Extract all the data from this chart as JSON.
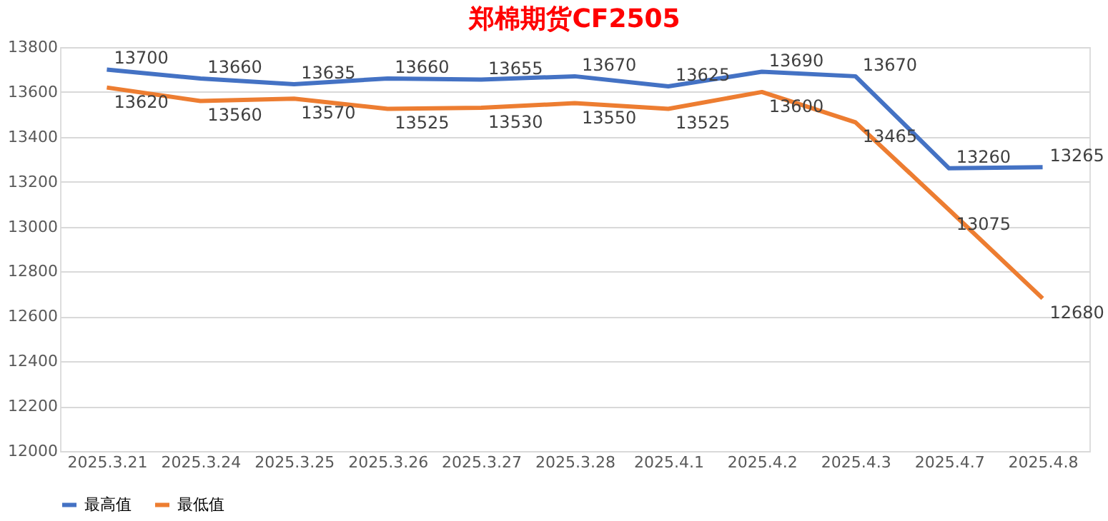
{
  "chart_data": {
    "type": "line",
    "title": "郑棉期货CF2505",
    "categories": [
      "2025.3.21",
      "2025.3.24",
      "2025.3.25",
      "2025.3.26",
      "2025.3.27",
      "2025.3.28",
      "2025.4.1",
      "2025.4.2",
      "2025.4.3",
      "2025.4.7",
      "2025.4.8"
    ],
    "series": [
      {
        "name": "最高值",
        "color": "#4472c4",
        "values": [
          13700,
          13660,
          13635,
          13660,
          13655,
          13670,
          13625,
          13690,
          13670,
          13260,
          13265
        ]
      },
      {
        "name": "最低值",
        "color": "#ed7d31",
        "values": [
          13620,
          13560,
          13570,
          13525,
          13530,
          13550,
          13525,
          13600,
          13465,
          13075,
          12680
        ]
      }
    ],
    "ylim": [
      12000,
      13800
    ],
    "yticks": [
      12000,
      12200,
      12400,
      12600,
      12800,
      13000,
      13200,
      13400,
      13600,
      13800
    ],
    "grid": "y",
    "legend": "bottom",
    "data_labels": true,
    "marker": "none",
    "line_style": "solid"
  }
}
